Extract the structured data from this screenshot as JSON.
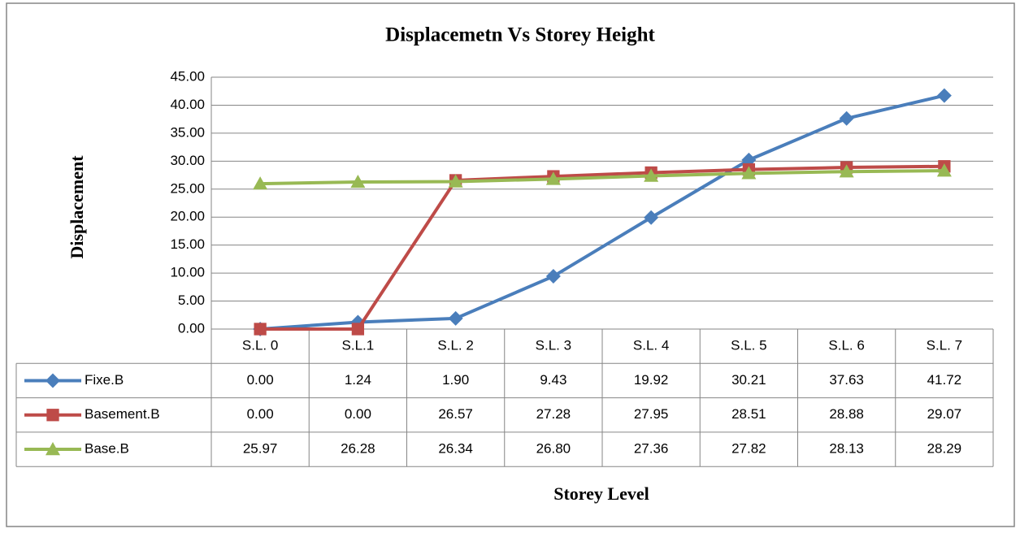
{
  "chart_data": {
    "type": "line",
    "title": "Displacemetn Vs Storey Height",
    "y_label": "Displacement",
    "x_label": "Storey Level",
    "categories": [
      "S.L. 0",
      "S.L.1",
      "S.L. 2",
      "S.L. 3",
      "S.L. 4",
      "S.L. 5",
      "S.L. 6",
      "S.L. 7"
    ],
    "series": [
      {
        "name": "Fixe.B",
        "color": "#4a7ebb",
        "marker": "diamond",
        "values": [
          0,
          1.24,
          1.9,
          9.43,
          19.92,
          30.21,
          37.63,
          41.72
        ],
        "value_labels": [
          "0.00",
          "1.24",
          "1.90",
          "9.43",
          "19.92",
          "30.21",
          "37.63",
          "41.72"
        ]
      },
      {
        "name": "Basement.B",
        "color": "#be4b48",
        "marker": "square",
        "values": [
          0,
          0,
          26.57,
          27.28,
          27.95,
          28.51,
          28.88,
          29.07
        ],
        "value_labels": [
          "0.00",
          "0.00",
          "26.57",
          "27.28",
          "27.95",
          "28.51",
          "28.88",
          "29.07"
        ]
      },
      {
        "name": "Base.B",
        "color": "#98b954",
        "marker": "triangle",
        "values": [
          25.97,
          26.28,
          26.34,
          26.8,
          27.36,
          27.82,
          28.13,
          28.29
        ],
        "value_labels": [
          "25.97",
          "26.28",
          "26.34",
          "26.80",
          "27.36",
          "27.82",
          "28.13",
          "28.29"
        ]
      }
    ],
    "ylim": [
      0,
      45
    ],
    "yticks": [
      {
        "value": 0,
        "label": "0.00"
      },
      {
        "value": 5,
        "label": "5.00"
      },
      {
        "value": 10,
        "label": "10.00"
      },
      {
        "value": 15,
        "label": "15.00"
      },
      {
        "value": 20,
        "label": "20.00"
      },
      {
        "value": 25,
        "label": "25.00"
      },
      {
        "value": 30,
        "label": "30.00"
      },
      {
        "value": 35,
        "label": "35.00"
      },
      {
        "value": 40,
        "label": "40.00"
      },
      {
        "value": 45,
        "label": "45.00"
      }
    ],
    "grid": true
  }
}
